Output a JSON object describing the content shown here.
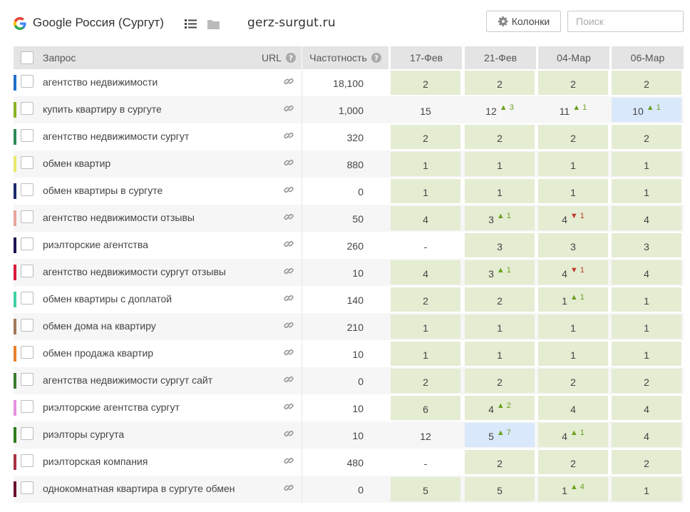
{
  "header": {
    "engine_title": "Google Россия (Сургут)",
    "domain": "gerz-surgut.ru",
    "columns_button": "Колонки",
    "search_placeholder": "Поиск",
    "icons": [
      "google-logo-icon",
      "list-icon",
      "folder-icon",
      "gear-icon"
    ]
  },
  "table": {
    "headers": {
      "query": "Запрос",
      "url": "URL",
      "frequency": "Частотность",
      "dates": [
        "17-Фев",
        "21-Фев",
        "04-Мар",
        "06-Мар"
      ]
    },
    "rows": [
      {
        "color": "#1f6fc8",
        "query": "агентство недвижимости",
        "frequency": "18,100",
        "positions": [
          {
            "v": "2",
            "bg": "green"
          },
          {
            "v": "2",
            "bg": "green"
          },
          {
            "v": "2",
            "bg": "green"
          },
          {
            "v": "2",
            "bg": "green"
          }
        ]
      },
      {
        "color": "#8ab224",
        "query": "купить квартиру в сургуте",
        "frequency": "1,000",
        "positions": [
          {
            "v": "15",
            "bg": "none"
          },
          {
            "v": "12",
            "bg": "none",
            "d": "3",
            "dir": "up"
          },
          {
            "v": "11",
            "bg": "none",
            "d": "1",
            "dir": "up"
          },
          {
            "v": "10",
            "bg": "blue",
            "d": "1",
            "dir": "up"
          }
        ]
      },
      {
        "color": "#2e8b57",
        "query": "агентство недвижимости сургут",
        "frequency": "320",
        "positions": [
          {
            "v": "2",
            "bg": "green"
          },
          {
            "v": "2",
            "bg": "green"
          },
          {
            "v": "2",
            "bg": "green"
          },
          {
            "v": "2",
            "bg": "green"
          }
        ]
      },
      {
        "color": "#e8e86a",
        "query": "обмен квартир",
        "frequency": "880",
        "positions": [
          {
            "v": "1",
            "bg": "green"
          },
          {
            "v": "1",
            "bg": "green"
          },
          {
            "v": "1",
            "bg": "green"
          },
          {
            "v": "1",
            "bg": "green"
          }
        ]
      },
      {
        "color": "#1a2a6c",
        "query": "обмен квартиры в сургуте",
        "frequency": "0",
        "positions": [
          {
            "v": "1",
            "bg": "green"
          },
          {
            "v": "1",
            "bg": "green"
          },
          {
            "v": "1",
            "bg": "green"
          },
          {
            "v": "1",
            "bg": "green"
          }
        ]
      },
      {
        "color": "#e8a59c",
        "query": "агентство недвижимости отзывы",
        "frequency": "50",
        "positions": [
          {
            "v": "4",
            "bg": "green"
          },
          {
            "v": "3",
            "bg": "green",
            "d": "1",
            "dir": "up"
          },
          {
            "v": "4",
            "bg": "green",
            "d": "1",
            "dir": "down"
          },
          {
            "v": "4",
            "bg": "green"
          }
        ]
      },
      {
        "color": "#1c1454",
        "query": "риэлторские агентства",
        "frequency": "260",
        "positions": [
          {
            "v": "-",
            "bg": "none"
          },
          {
            "v": "3",
            "bg": "green"
          },
          {
            "v": "3",
            "bg": "green"
          },
          {
            "v": "3",
            "bg": "green"
          }
        ]
      },
      {
        "color": "#d81b3c",
        "query": "агентство недвижимости сургут отзывы",
        "frequency": "10",
        "positions": [
          {
            "v": "4",
            "bg": "green"
          },
          {
            "v": "3",
            "bg": "green",
            "d": "1",
            "dir": "up"
          },
          {
            "v": "4",
            "bg": "green",
            "d": "1",
            "dir": "down"
          },
          {
            "v": "4",
            "bg": "green"
          }
        ]
      },
      {
        "color": "#3fd0a5",
        "query": "обмен квартиры с доплатой",
        "frequency": "140",
        "positions": [
          {
            "v": "2",
            "bg": "green"
          },
          {
            "v": "2",
            "bg": "green"
          },
          {
            "v": "1",
            "bg": "green",
            "d": "1",
            "dir": "up"
          },
          {
            "v": "1",
            "bg": "green"
          }
        ]
      },
      {
        "color": "#a0785a",
        "query": "обмен дома на квартиру",
        "frequency": "210",
        "positions": [
          {
            "v": "1",
            "bg": "green"
          },
          {
            "v": "1",
            "bg": "green"
          },
          {
            "v": "1",
            "bg": "green"
          },
          {
            "v": "1",
            "bg": "green"
          }
        ]
      },
      {
        "color": "#e8812a",
        "query": "обмен продажа квартир",
        "frequency": "10",
        "positions": [
          {
            "v": "1",
            "bg": "green"
          },
          {
            "v": "1",
            "bg": "green"
          },
          {
            "v": "1",
            "bg": "green"
          },
          {
            "v": "1",
            "bg": "green"
          }
        ]
      },
      {
        "color": "#3a7a2e",
        "query": "агентства недвижимости сургут сайт",
        "frequency": "0",
        "positions": [
          {
            "v": "2",
            "bg": "green"
          },
          {
            "v": "2",
            "bg": "green"
          },
          {
            "v": "2",
            "bg": "green"
          },
          {
            "v": "2",
            "bg": "green"
          }
        ]
      },
      {
        "color": "#e48fe0",
        "query": "риэлторские агентства сургут",
        "frequency": "10",
        "positions": [
          {
            "v": "6",
            "bg": "green"
          },
          {
            "v": "4",
            "bg": "green",
            "d": "2",
            "dir": "up"
          },
          {
            "v": "4",
            "bg": "green"
          },
          {
            "v": "4",
            "bg": "green"
          }
        ]
      },
      {
        "color": "#2e7d1e",
        "query": "риэлторы сургута",
        "frequency": "10",
        "positions": [
          {
            "v": "12",
            "bg": "none"
          },
          {
            "v": "5",
            "bg": "blue",
            "d": "7",
            "dir": "up"
          },
          {
            "v": "4",
            "bg": "green",
            "d": "1",
            "dir": "up"
          },
          {
            "v": "4",
            "bg": "green"
          }
        ]
      },
      {
        "color": "#a83240",
        "query": "риэлторская компания",
        "frequency": "480",
        "positions": [
          {
            "v": "-",
            "bg": "none"
          },
          {
            "v": "2",
            "bg": "green"
          },
          {
            "v": "2",
            "bg": "green"
          },
          {
            "v": "2",
            "bg": "green"
          }
        ]
      },
      {
        "color": "#6a0f2e",
        "query": "однокомнатная квартира в сургуте обмен",
        "frequency": "0",
        "positions": [
          {
            "v": "5",
            "bg": "green"
          },
          {
            "v": "5",
            "bg": "green"
          },
          {
            "v": "1",
            "bg": "green",
            "d": "4",
            "dir": "up"
          },
          {
            "v": "1",
            "bg": "green"
          }
        ]
      }
    ]
  }
}
